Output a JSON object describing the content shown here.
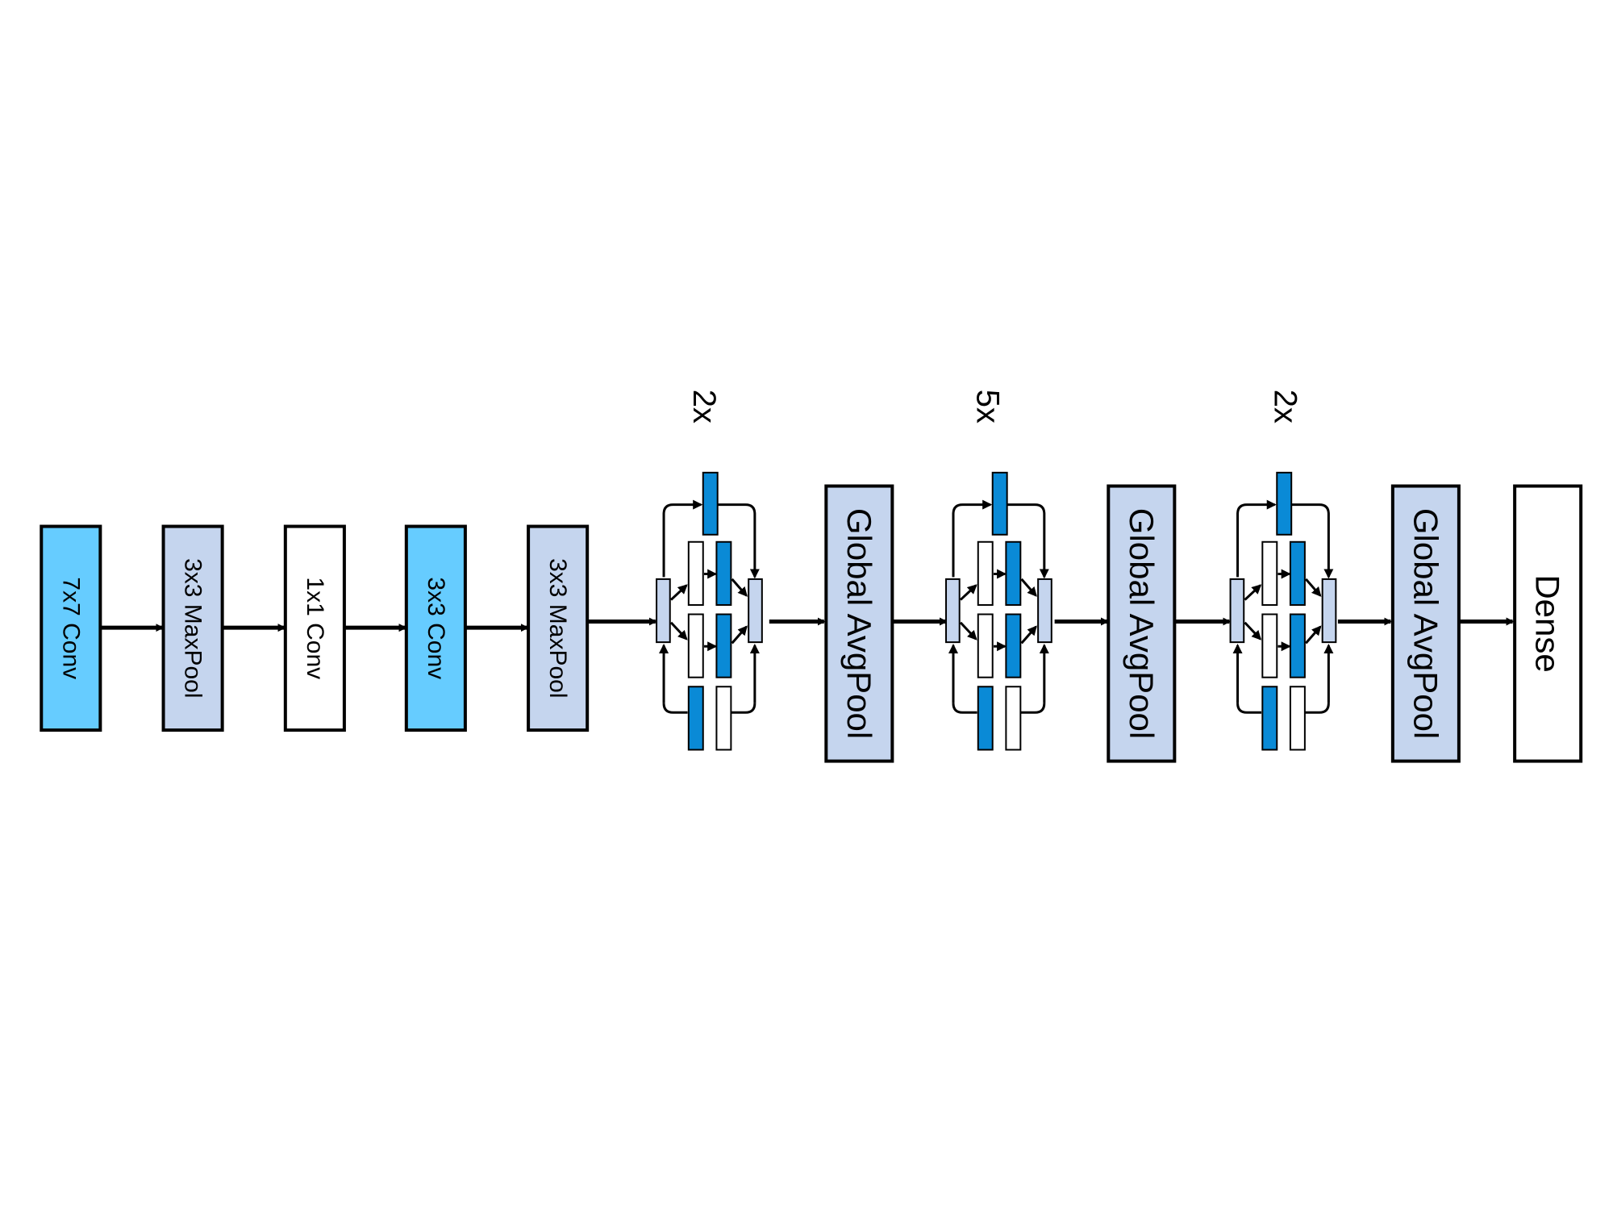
{
  "colors": {
    "conv_cyan": "#66ccff",
    "pool_lavender": "#c5d5ee",
    "plain_white": "#ffffff",
    "inner_blue": "#0a8ad6",
    "stroke": "#000000"
  },
  "stem_layers": [
    {
      "label": "7x7 Conv",
      "fill": "conv_cyan"
    },
    {
      "label": "3x3 MaxPool",
      "fill": "pool_lavender"
    },
    {
      "label": "1x1 Conv",
      "fill": "plain_white"
    },
    {
      "label": "3x3 Conv",
      "fill": "conv_cyan"
    },
    {
      "label": "3x3 MaxPool",
      "fill": "pool_lavender"
    }
  ],
  "stages": [
    {
      "repeat": "2x",
      "pool_label": "Global AvgPool"
    },
    {
      "repeat": "5x",
      "pool_label": "Global AvgPool"
    },
    {
      "repeat": "2x",
      "pool_label": "Global AvgPool"
    }
  ],
  "head": {
    "label": "Dense"
  }
}
